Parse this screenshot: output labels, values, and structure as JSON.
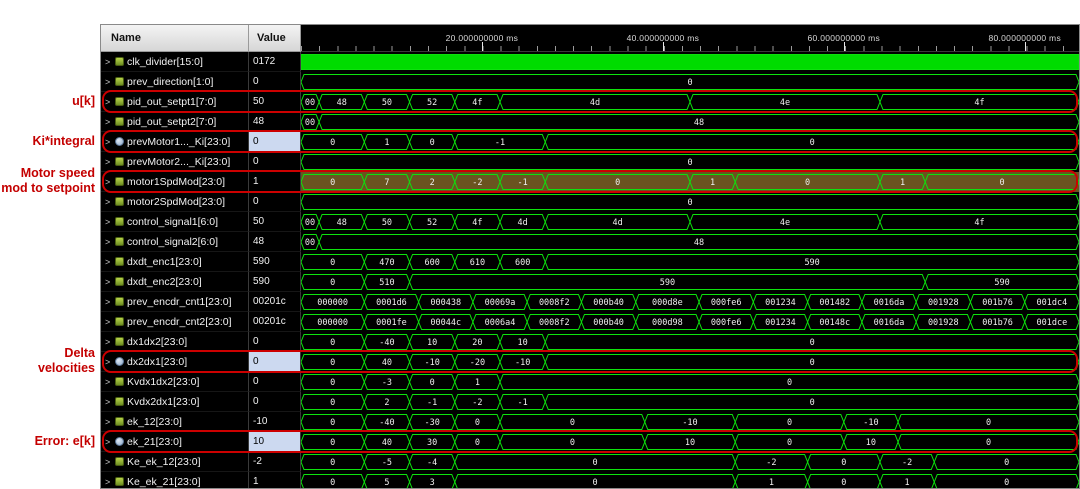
{
  "header": {
    "name": "Name",
    "value": "Value"
  },
  "icons": {
    "expand_arrow": ">"
  },
  "timeline": {
    "total_ms": 86,
    "unit": "ms",
    "ticks": [
      {
        "ms": 20,
        "label": "20.000000000 ms"
      },
      {
        "ms": 40,
        "label": "40.000000000 ms"
      },
      {
        "ms": 60,
        "label": "60.000000000 ms"
      },
      {
        "ms": 80,
        "label": "80.000000000 ms"
      }
    ]
  },
  "colors": {
    "wave_green": "#0de30d",
    "solid_green": "#00dc00",
    "annotation_red": "#cc0000",
    "selected_value_bg": "#ccd9f0",
    "selected_wave_bg": "#6a5420"
  },
  "annotations": [
    {
      "lines": [
        "u[k]"
      ],
      "row": 2
    },
    {
      "lines": [
        "Ki*integral"
      ],
      "row": 4
    },
    {
      "lines": [
        "Motor speed",
        "mod to setpoint"
      ],
      "row": 6
    },
    {
      "lines": [
        "Delta",
        "velocities"
      ],
      "row": 15
    },
    {
      "lines": [
        "Error: e[k]"
      ],
      "row": 19
    }
  ],
  "signals": [
    {
      "name": "clk_divider[15:0]",
      "value": "0172",
      "wave": "solid"
    },
    {
      "name": "prev_direction[1:0]",
      "value": "0",
      "segments": [
        [
          0,
          86,
          "0"
        ]
      ]
    },
    {
      "name": "pid_out_setpt1[7:0]",
      "value": "50",
      "boxed": true,
      "segments": [
        [
          0,
          2,
          "00"
        ],
        [
          2,
          7,
          "48"
        ],
        [
          7,
          12,
          "50"
        ],
        [
          12,
          17,
          "52"
        ],
        [
          17,
          22,
          "4f"
        ],
        [
          22,
          43,
          "4d"
        ],
        [
          43,
          64,
          "4e"
        ],
        [
          64,
          86,
          "4f"
        ]
      ]
    },
    {
      "name": "pid_out_setpt2[7:0]",
      "value": "48",
      "segments": [
        [
          0,
          2,
          "00"
        ],
        [
          2,
          86,
          "48"
        ]
      ]
    },
    {
      "name": "prevMotor1..._Ki[23:0]",
      "value": "0",
      "boxed": true,
      "selected": true,
      "icon": "derived",
      "segments": [
        [
          0,
          7,
          "0"
        ],
        [
          7,
          12,
          "1"
        ],
        [
          12,
          17,
          "0"
        ],
        [
          17,
          27,
          "-1"
        ],
        [
          27,
          86,
          "0"
        ]
      ]
    },
    {
      "name": "prevMotor2..._Ki[23:0]",
      "value": "0",
      "segments": [
        [
          0,
          86,
          "0"
        ]
      ]
    },
    {
      "name": "motor1SpdMod[23:0]",
      "value": "1",
      "boxed": true,
      "wave_tint": true,
      "segments": [
        [
          0,
          7,
          "0"
        ],
        [
          7,
          12,
          "7"
        ],
        [
          12,
          17,
          "2"
        ],
        [
          17,
          22,
          "-2"
        ],
        [
          22,
          27,
          "-1"
        ],
        [
          27,
          43,
          "0"
        ],
        [
          43,
          48,
          "1"
        ],
        [
          48,
          64,
          "0"
        ],
        [
          64,
          69,
          "1"
        ],
        [
          69,
          86,
          "0"
        ]
      ]
    },
    {
      "name": "motor2SpdMod[23:0]",
      "value": "0",
      "segments": [
        [
          0,
          86,
          "0"
        ]
      ]
    },
    {
      "name": "control_signal1[6:0]",
      "value": "50",
      "segments": [
        [
          0,
          2,
          "00"
        ],
        [
          2,
          7,
          "48"
        ],
        [
          7,
          12,
          "50"
        ],
        [
          12,
          17,
          "52"
        ],
        [
          17,
          22,
          "4f"
        ],
        [
          22,
          27,
          "4d"
        ],
        [
          27,
          43,
          "4d"
        ],
        [
          43,
          64,
          "4e"
        ],
        [
          64,
          86,
          "4f"
        ]
      ]
    },
    {
      "name": "control_signal2[6:0]",
      "value": "48",
      "segments": [
        [
          0,
          2,
          "00"
        ],
        [
          2,
          86,
          "48"
        ]
      ]
    },
    {
      "name": "dxdt_enc1[23:0]",
      "value": "590",
      "segments": [
        [
          0,
          7,
          "0"
        ],
        [
          7,
          12,
          "470"
        ],
        [
          12,
          17,
          "600"
        ],
        [
          17,
          22,
          "610"
        ],
        [
          22,
          27,
          "600"
        ],
        [
          27,
          86,
          "590"
        ]
      ]
    },
    {
      "name": "dxdt_enc2[23:0]",
      "value": "590",
      "segments": [
        [
          0,
          7,
          "0"
        ],
        [
          7,
          12,
          "510"
        ],
        [
          12,
          69,
          "590"
        ],
        [
          69,
          86,
          "590"
        ]
      ]
    },
    {
      "name": "prev_encdr_cnt1[23:0]",
      "value": "00201c",
      "segments": [
        [
          0,
          7,
          "000000"
        ],
        [
          7,
          13,
          "0001d6"
        ],
        [
          13,
          19,
          "000438"
        ],
        [
          19,
          25,
          "00069a"
        ],
        [
          25,
          31,
          "0008f2"
        ],
        [
          31,
          37,
          "000b40"
        ],
        [
          37,
          44,
          "000d8e"
        ],
        [
          44,
          50,
          "000fe6"
        ],
        [
          50,
          56,
          "001234"
        ],
        [
          56,
          62,
          "001482"
        ],
        [
          62,
          68,
          "0016da"
        ],
        [
          68,
          74,
          "001928"
        ],
        [
          74,
          80,
          "001b76"
        ],
        [
          80,
          86,
          "001dc4"
        ]
      ]
    },
    {
      "name": "prev_encdr_cnt2[23:0]",
      "value": "00201c",
      "segments": [
        [
          0,
          7,
          "000000"
        ],
        [
          7,
          13,
          "0001fe"
        ],
        [
          13,
          19,
          "00044c"
        ],
        [
          19,
          25,
          "0006a4"
        ],
        [
          25,
          31,
          "0008f2"
        ],
        [
          31,
          37,
          "000b40"
        ],
        [
          37,
          44,
          "000d98"
        ],
        [
          44,
          50,
          "000fe6"
        ],
        [
          50,
          56,
          "001234"
        ],
        [
          56,
          62,
          "00148c"
        ],
        [
          62,
          68,
          "0016da"
        ],
        [
          68,
          74,
          "001928"
        ],
        [
          74,
          80,
          "001b76"
        ],
        [
          80,
          86,
          "001dce"
        ]
      ]
    },
    {
      "name": "dx1dx2[23:0]",
      "value": "0",
      "segments": [
        [
          0,
          7,
          "0"
        ],
        [
          7,
          12,
          "-40"
        ],
        [
          12,
          17,
          "10"
        ],
        [
          17,
          22,
          "20"
        ],
        [
          22,
          27,
          "10"
        ],
        [
          27,
          86,
          "0"
        ]
      ]
    },
    {
      "name": "dx2dx1[23:0]",
      "value": "0",
      "boxed": true,
      "selected": true,
      "icon": "derived",
      "segments": [
        [
          0,
          7,
          "0"
        ],
        [
          7,
          12,
          "40"
        ],
        [
          12,
          17,
          "-10"
        ],
        [
          17,
          22,
          "-20"
        ],
        [
          22,
          27,
          "-10"
        ],
        [
          27,
          86,
          "0"
        ]
      ]
    },
    {
      "name": "Kvdx1dx2[23:0]",
      "value": "0",
      "segments": [
        [
          0,
          7,
          "0"
        ],
        [
          7,
          12,
          "-3"
        ],
        [
          12,
          17,
          "0"
        ],
        [
          17,
          22,
          "1"
        ],
        [
          22,
          86,
          "0"
        ]
      ]
    },
    {
      "name": "Kvdx2dx1[23:0]",
      "value": "0",
      "segments": [
        [
          0,
          7,
          "0"
        ],
        [
          7,
          12,
          "2"
        ],
        [
          12,
          17,
          "-1"
        ],
        [
          17,
          22,
          "-2"
        ],
        [
          22,
          27,
          "-1"
        ],
        [
          27,
          86,
          "0"
        ]
      ]
    },
    {
      "name": "ek_12[23:0]",
      "value": "-10",
      "segments": [
        [
          0,
          7,
          "0"
        ],
        [
          7,
          12,
          "-40"
        ],
        [
          12,
          17,
          "-30"
        ],
        [
          17,
          22,
          "0"
        ],
        [
          22,
          38,
          "0"
        ],
        [
          38,
          48,
          "-10"
        ],
        [
          48,
          60,
          "0"
        ],
        [
          60,
          66,
          "-10"
        ],
        [
          66,
          86,
          "0"
        ]
      ]
    },
    {
      "name": "ek_21[23:0]",
      "value": "10",
      "boxed": true,
      "selected": true,
      "icon": "derived",
      "segments": [
        [
          0,
          7,
          "0"
        ],
        [
          7,
          12,
          "40"
        ],
        [
          12,
          17,
          "30"
        ],
        [
          17,
          22,
          "0"
        ],
        [
          22,
          38,
          "0"
        ],
        [
          38,
          48,
          "10"
        ],
        [
          48,
          60,
          "0"
        ],
        [
          60,
          66,
          "10"
        ],
        [
          66,
          86,
          "0"
        ]
      ]
    },
    {
      "name": "Ke_ek_12[23:0]",
      "value": "-2",
      "segments": [
        [
          0,
          7,
          "0"
        ],
        [
          7,
          12,
          "-5"
        ],
        [
          12,
          17,
          "-4"
        ],
        [
          17,
          48,
          "0"
        ],
        [
          48,
          56,
          "-2"
        ],
        [
          56,
          64,
          "0"
        ],
        [
          64,
          70,
          "-2"
        ],
        [
          70,
          86,
          "0"
        ]
      ]
    },
    {
      "name": "Ke_ek_21[23:0]",
      "value": "1",
      "segments": [
        [
          0,
          7,
          "0"
        ],
        [
          7,
          12,
          "5"
        ],
        [
          12,
          17,
          "3"
        ],
        [
          17,
          48,
          "0"
        ],
        [
          48,
          56,
          "1"
        ],
        [
          56,
          64,
          "0"
        ],
        [
          64,
          70,
          "1"
        ],
        [
          70,
          86,
          "0"
        ]
      ]
    }
  ]
}
